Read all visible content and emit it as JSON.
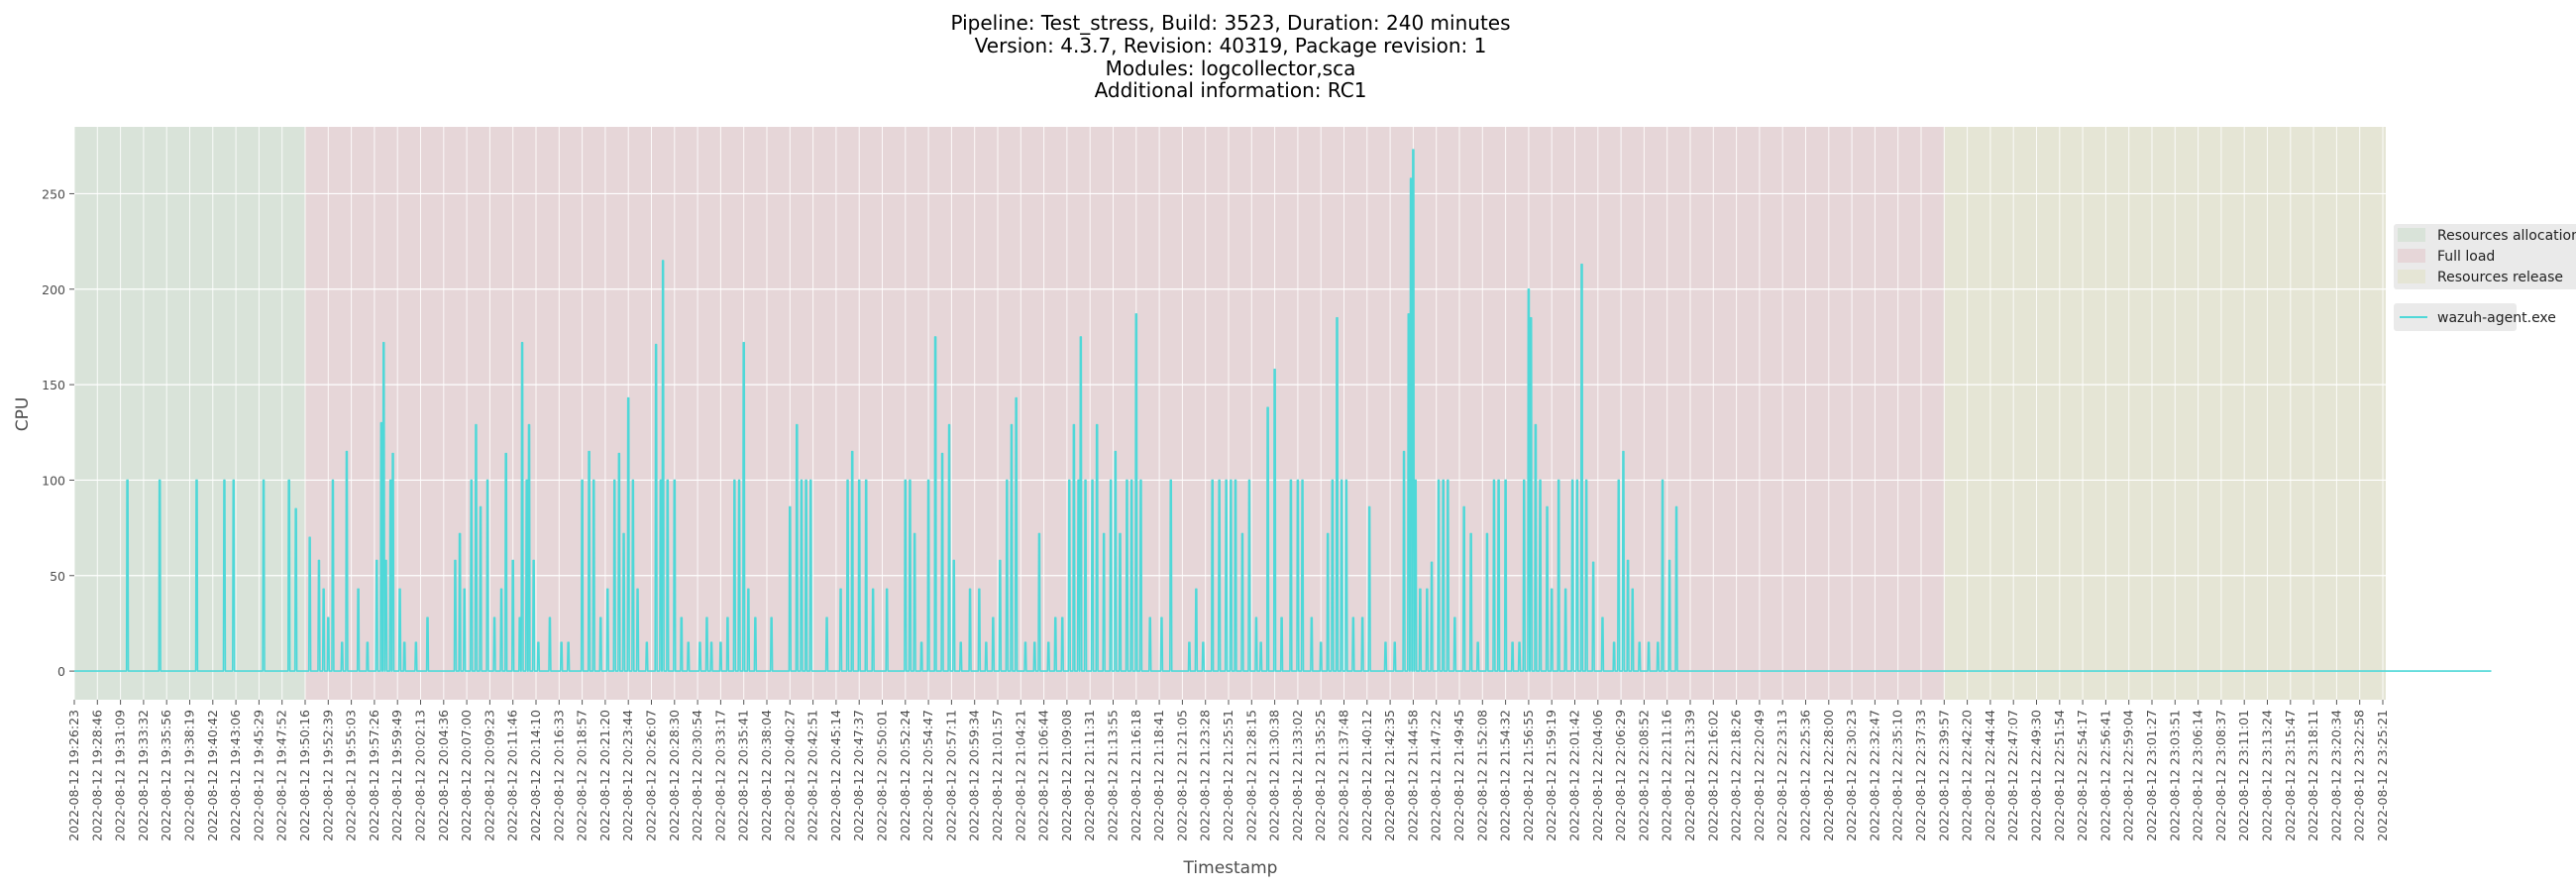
{
  "chart_data": {
    "type": "line",
    "title_lines": [
      "Pipeline: Test_stress, Build: 3523, Duration: 240 minutes",
      "Version: 4.3.7, Revision: 40319, Package revision: 1",
      "Modules: logcollector,sca",
      "Additional information: RC1"
    ],
    "xlabel": "Timestamp",
    "ylabel": "CPU",
    "ylim": [
      -15,
      285
    ],
    "yticks": [
      0,
      50,
      100,
      150,
      200,
      250
    ],
    "grid": true,
    "legend_position": "right",
    "x_tick_labels": [
      "2022-08-12 19:26:23",
      "2022-08-12 19:28:46",
      "2022-08-12 19:31:09",
      "2022-08-12 19:33:32",
      "2022-08-12 19:35:56",
      "2022-08-12 19:38:19",
      "2022-08-12 19:40:42",
      "2022-08-12 19:43:06",
      "2022-08-12 19:45:29",
      "2022-08-12 19:47:52",
      "2022-08-12 19:50:16",
      "2022-08-12 19:52:39",
      "2022-08-12 19:55:03",
      "2022-08-12 19:57:26",
      "2022-08-12 19:59:49",
      "2022-08-12 20:02:13",
      "2022-08-12 20:04:36",
      "2022-08-12 20:07:00",
      "2022-08-12 20:09:23",
      "2022-08-12 20:11:46",
      "2022-08-12 20:14:10",
      "2022-08-12 20:16:33",
      "2022-08-12 20:18:57",
      "2022-08-12 20:21:20",
      "2022-08-12 20:23:44",
      "2022-08-12 20:26:07",
      "2022-08-12 20:28:30",
      "2022-08-12 20:30:54",
      "2022-08-12 20:33:17",
      "2022-08-12 20:35:41",
      "2022-08-12 20:38:04",
      "2022-08-12 20:40:27",
      "2022-08-12 20:42:51",
      "2022-08-12 20:45:14",
      "2022-08-12 20:47:37",
      "2022-08-12 20:50:01",
      "2022-08-12 20:52:24",
      "2022-08-12 20:54:47",
      "2022-08-12 20:57:11",
      "2022-08-12 20:59:34",
      "2022-08-12 21:01:57",
      "2022-08-12 21:04:21",
      "2022-08-12 21:06:44",
      "2022-08-12 21:09:08",
      "2022-08-12 21:11:31",
      "2022-08-12 21:13:55",
      "2022-08-12 21:16:18",
      "2022-08-12 21:18:41",
      "2022-08-12 21:21:05",
      "2022-08-12 21:23:28",
      "2022-08-12 21:25:51",
      "2022-08-12 21:28:15",
      "2022-08-12 21:30:38",
      "2022-08-12 21:33:02",
      "2022-08-12 21:35:25",
      "2022-08-12 21:37:48",
      "2022-08-12 21:40:12",
      "2022-08-12 21:42:35",
      "2022-08-12 21:44:58",
      "2022-08-12 21:47:22",
      "2022-08-12 21:49:45",
      "2022-08-12 21:52:08",
      "2022-08-12 21:54:32",
      "2022-08-12 21:56:55",
      "2022-08-12 21:59:19",
      "2022-08-12 22:01:42",
      "2022-08-12 22:04:06",
      "2022-08-12 22:06:29",
      "2022-08-12 22:08:52",
      "2022-08-12 22:11:16",
      "2022-08-12 22:13:39",
      "2022-08-12 22:16:02",
      "2022-08-12 22:18:26",
      "2022-08-12 22:20:49",
      "2022-08-12 22:23:13",
      "2022-08-12 22:25:36",
      "2022-08-12 22:28:00",
      "2022-08-12 22:30:23",
      "2022-08-12 22:32:47",
      "2022-08-12 22:35:10",
      "2022-08-12 22:37:33",
      "2022-08-12 22:39:57",
      "2022-08-12 22:42:20",
      "2022-08-12 22:44:44",
      "2022-08-12 22:47:07",
      "2022-08-12 22:49:30",
      "2022-08-12 22:51:54",
      "2022-08-12 22:54:17",
      "2022-08-12 22:56:41",
      "2022-08-12 22:59:04",
      "2022-08-12 23:01:27",
      "2022-08-12 23:03:51",
      "2022-08-12 23:06:14",
      "2022-08-12 23:08:37",
      "2022-08-12 23:11:01",
      "2022-08-12 23:13:24",
      "2022-08-12 23:15:47",
      "2022-08-12 23:18:11",
      "2022-08-12 23:20:34",
      "2022-08-12 23:22:58",
      "2022-08-12 23:25:21"
    ],
    "phases": [
      {
        "name": "Resources allocation",
        "start_tick": 0,
        "end_tick": 10,
        "color": "#d9e3d9"
      },
      {
        "name": "Full load",
        "start_tick": 10,
        "end_tick": 81,
        "color": "#e6d6d8"
      },
      {
        "name": "Resources release",
        "start_tick": 81,
        "end_tick": 100,
        "color": "#e5e5d5"
      }
    ],
    "series": [
      {
        "name": "wazuh-agent.exe",
        "color": "#4fd8d8",
        "points": [
          [
            0,
            0
          ],
          [
            2.2,
            0
          ],
          [
            2.3,
            100
          ],
          [
            2.4,
            0
          ],
          [
            3.6,
            0
          ],
          [
            3.7,
            0
          ],
          [
            3.8,
            0
          ],
          [
            3.9,
            0
          ],
          [
            3.95,
            0
          ],
          [
            4.5,
            0
          ],
          [
            4.55,
            0
          ],
          [
            5.2,
            0
          ],
          [
            5.3,
            0
          ],
          [
            3.6,
            0
          ],
          [
            3.61,
            0
          ],
          [
            3.62,
            0
          ],
          [
            3.6,
            0
          ]
        ],
        "spikes": [
          [
            2.3,
            100
          ],
          [
            3.7,
            100
          ],
          [
            5.3,
            100
          ],
          [
            6.5,
            100
          ],
          [
            6.9,
            100
          ],
          [
            8.2,
            100
          ],
          [
            9.3,
            100
          ],
          [
            9.6,
            85
          ],
          [
            10.2,
            70
          ],
          [
            10.6,
            58
          ],
          [
            10.8,
            43
          ],
          [
            11.0,
            28
          ],
          [
            11.2,
            100
          ],
          [
            11.6,
            15
          ],
          [
            11.8,
            115
          ],
          [
            12.3,
            43
          ],
          [
            12.7,
            15
          ],
          [
            13.1,
            58
          ],
          [
            13.3,
            130
          ],
          [
            13.4,
            172
          ],
          [
            13.5,
            58
          ],
          [
            13.7,
            100
          ],
          [
            13.8,
            114
          ],
          [
            14.1,
            43
          ],
          [
            14.3,
            15
          ],
          [
            14.8,
            15
          ],
          [
            15.3,
            28
          ],
          [
            16.5,
            58
          ],
          [
            16.7,
            72
          ],
          [
            16.9,
            43
          ],
          [
            17.2,
            100
          ],
          [
            17.4,
            129
          ],
          [
            17.6,
            86
          ],
          [
            17.9,
            100
          ],
          [
            18.2,
            28
          ],
          [
            18.5,
            43
          ],
          [
            18.7,
            114
          ],
          [
            19.0,
            58
          ],
          [
            19.3,
            28
          ],
          [
            19.4,
            172
          ],
          [
            19.6,
            100
          ],
          [
            19.7,
            129
          ],
          [
            19.9,
            58
          ],
          [
            20.1,
            15
          ],
          [
            20.6,
            28
          ],
          [
            21.1,
            15
          ],
          [
            21.4,
            15
          ],
          [
            22.0,
            100
          ],
          [
            22.3,
            115
          ],
          [
            22.5,
            100
          ],
          [
            22.8,
            28
          ],
          [
            23.1,
            43
          ],
          [
            23.4,
            100
          ],
          [
            23.6,
            114
          ],
          [
            23.8,
            72
          ],
          [
            24.0,
            143
          ],
          [
            24.2,
            100
          ],
          [
            24.4,
            43
          ],
          [
            24.8,
            15
          ],
          [
            25.2,
            171
          ],
          [
            25.4,
            100
          ],
          [
            25.5,
            215
          ],
          [
            25.7,
            100
          ],
          [
            26.0,
            100
          ],
          [
            26.3,
            28
          ],
          [
            26.6,
            15
          ],
          [
            27.1,
            15
          ],
          [
            27.4,
            28
          ],
          [
            27.6,
            15
          ],
          [
            28.0,
            15
          ],
          [
            28.3,
            28
          ],
          [
            28.6,
            100
          ],
          [
            28.8,
            100
          ],
          [
            29.0,
            172
          ],
          [
            29.2,
            43
          ],
          [
            29.5,
            28
          ],
          [
            30.2,
            28
          ],
          [
            31.0,
            86
          ],
          [
            31.3,
            129
          ],
          [
            31.5,
            100
          ],
          [
            31.7,
            100
          ],
          [
            31.9,
            100
          ],
          [
            32.6,
            28
          ],
          [
            33.2,
            43
          ],
          [
            33.5,
            100
          ],
          [
            33.7,
            115
          ],
          [
            34.0,
            100
          ],
          [
            34.3,
            100
          ],
          [
            34.6,
            43
          ],
          [
            35.2,
            43
          ],
          [
            36.0,
            100
          ],
          [
            36.2,
            100
          ],
          [
            36.4,
            72
          ],
          [
            36.7,
            15
          ],
          [
            37.0,
            100
          ],
          [
            37.3,
            175
          ],
          [
            37.6,
            114
          ],
          [
            37.9,
            129
          ],
          [
            38.1,
            58
          ],
          [
            38.4,
            15
          ],
          [
            38.8,
            43
          ],
          [
            39.2,
            43
          ],
          [
            39.5,
            15
          ],
          [
            39.8,
            28
          ],
          [
            40.1,
            58
          ],
          [
            40.4,
            100
          ],
          [
            40.6,
            129
          ],
          [
            40.8,
            143
          ],
          [
            41.2,
            15
          ],
          [
            41.6,
            15
          ],
          [
            41.8,
            72
          ],
          [
            42.2,
            15
          ],
          [
            42.5,
            28
          ],
          [
            42.8,
            28
          ],
          [
            43.1,
            100
          ],
          [
            43.3,
            129
          ],
          [
            43.5,
            100
          ],
          [
            43.6,
            175
          ],
          [
            43.8,
            100
          ],
          [
            44.1,
            100
          ],
          [
            44.3,
            129
          ],
          [
            44.6,
            72
          ],
          [
            44.9,
            100
          ],
          [
            45.1,
            115
          ],
          [
            45.3,
            72
          ],
          [
            45.6,
            100
          ],
          [
            45.8,
            100
          ],
          [
            46.0,
            187
          ],
          [
            46.2,
            100
          ],
          [
            46.6,
            28
          ],
          [
            47.1,
            28
          ],
          [
            47.5,
            100
          ],
          [
            48.3,
            15
          ],
          [
            48.6,
            43
          ],
          [
            48.9,
            15
          ],
          [
            49.3,
            100
          ],
          [
            49.6,
            100
          ],
          [
            49.9,
            100
          ],
          [
            50.1,
            100
          ],
          [
            50.3,
            100
          ],
          [
            50.6,
            72
          ],
          [
            50.9,
            100
          ],
          [
            51.2,
            28
          ],
          [
            51.4,
            15
          ],
          [
            51.7,
            138
          ],
          [
            52.0,
            158
          ],
          [
            52.3,
            28
          ],
          [
            52.7,
            100
          ],
          [
            53.0,
            100
          ],
          [
            53.2,
            100
          ],
          [
            53.6,
            28
          ],
          [
            54.0,
            15
          ],
          [
            54.3,
            72
          ],
          [
            54.5,
            100
          ],
          [
            54.7,
            185
          ],
          [
            54.9,
            100
          ],
          [
            55.1,
            100
          ],
          [
            55.4,
            28
          ],
          [
            55.8,
            28
          ],
          [
            56.1,
            86
          ],
          [
            56.8,
            15
          ],
          [
            57.2,
            15
          ],
          [
            57.6,
            115
          ],
          [
            57.8,
            187
          ],
          [
            57.9,
            258
          ],
          [
            58.0,
            273
          ],
          [
            58.1,
            100
          ],
          [
            58.3,
            43
          ],
          [
            58.6,
            43
          ],
          [
            58.8,
            57
          ],
          [
            59.1,
            100
          ],
          [
            59.3,
            100
          ],
          [
            59.5,
            100
          ],
          [
            59.8,
            28
          ],
          [
            60.2,
            86
          ],
          [
            60.5,
            72
          ],
          [
            60.8,
            15
          ],
          [
            61.2,
            72
          ],
          [
            61.5,
            100
          ],
          [
            61.7,
            100
          ],
          [
            62.0,
            100
          ],
          [
            62.3,
            15
          ],
          [
            62.6,
            15
          ],
          [
            62.8,
            100
          ],
          [
            63.0,
            200
          ],
          [
            63.1,
            185
          ],
          [
            63.3,
            129
          ],
          [
            63.5,
            100
          ],
          [
            63.8,
            86
          ],
          [
            64.0,
            43
          ],
          [
            64.3,
            100
          ],
          [
            64.6,
            43
          ],
          [
            64.9,
            100
          ],
          [
            65.1,
            100
          ],
          [
            65.3,
            213
          ],
          [
            65.5,
            100
          ],
          [
            65.8,
            57
          ],
          [
            66.2,
            28
          ],
          [
            66.7,
            15
          ],
          [
            66.9,
            100
          ],
          [
            67.1,
            115
          ],
          [
            67.3,
            58
          ],
          [
            67.5,
            43
          ],
          [
            67.8,
            15
          ],
          [
            68.2,
            15
          ],
          [
            68.6,
            15
          ],
          [
            68.8,
            100
          ],
          [
            69.1,
            58
          ],
          [
            69.4,
            86
          ]
        ]
      }
    ]
  },
  "legend": {
    "phases": [
      "Resources allocation",
      "Full load",
      "Resources release"
    ],
    "series": [
      "wazuh-agent.exe"
    ]
  }
}
